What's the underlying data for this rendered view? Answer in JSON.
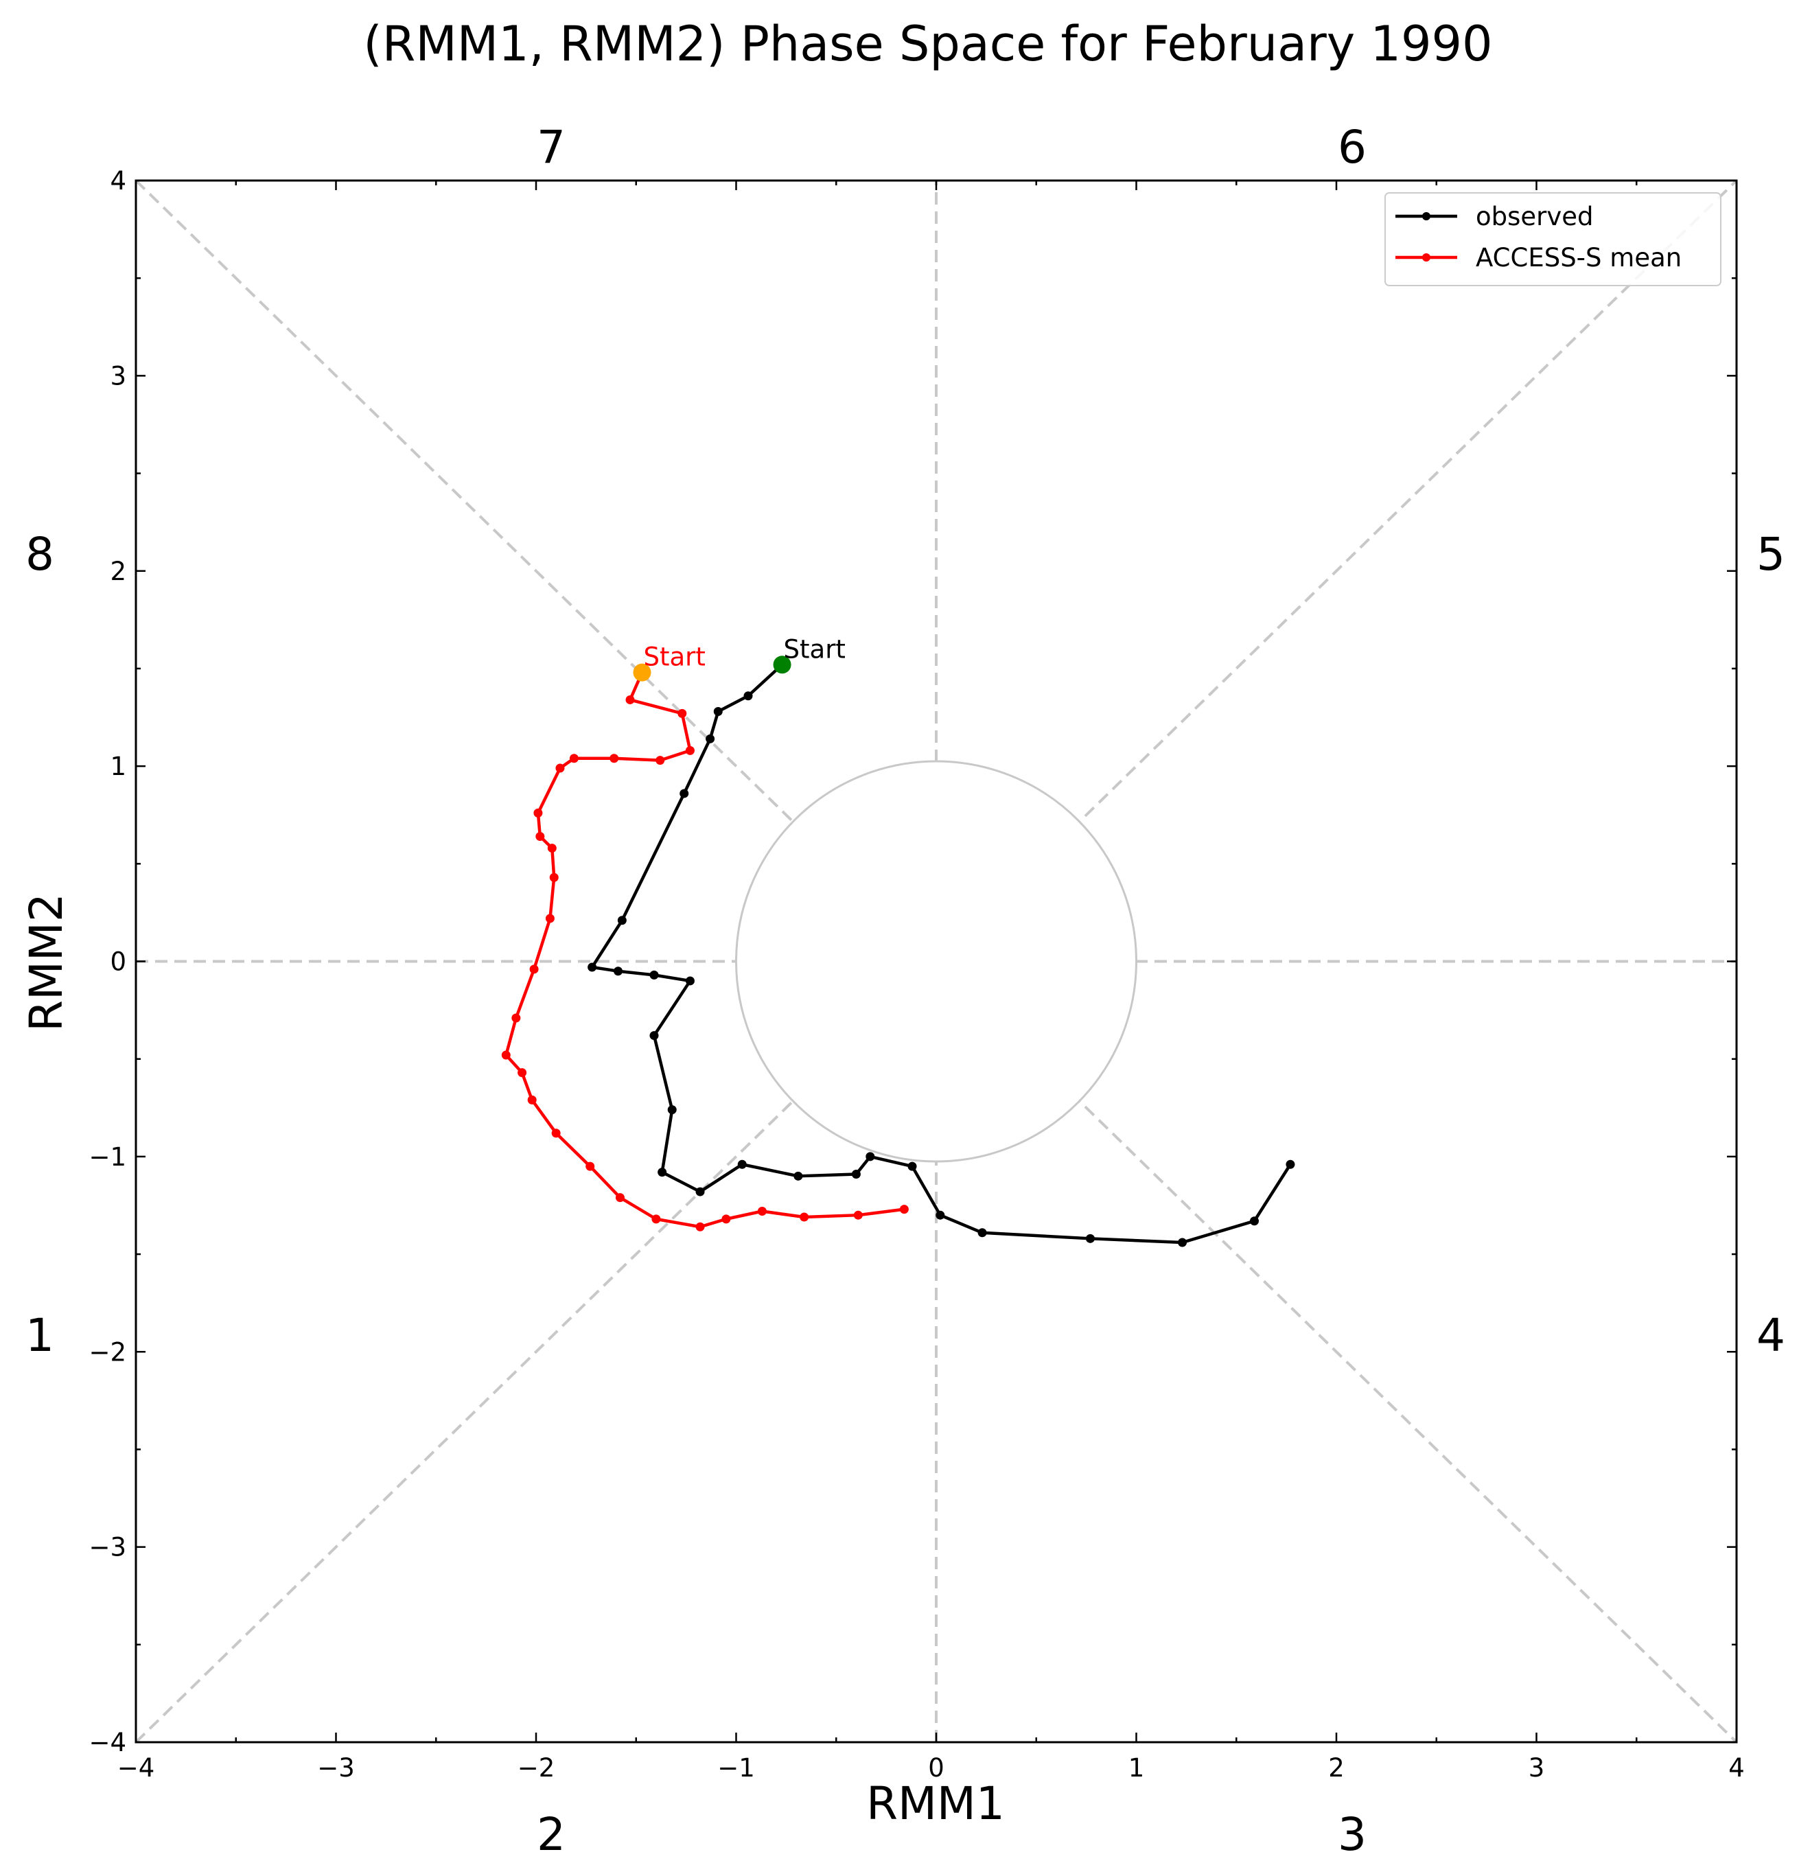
{
  "chart_data": {
    "type": "line",
    "title": "(RMM1, RMM2) Phase Space for February 1990",
    "xlabel": "RMM1",
    "ylabel": "RMM2",
    "xlim": [
      -4,
      4
    ],
    "ylim": [
      -4,
      4
    ],
    "xticks": [
      -4,
      -3,
      -2,
      -1,
      0,
      1,
      2,
      3,
      4
    ],
    "yticks": [
      -4,
      -3,
      -2,
      -1,
      0,
      1,
      2,
      3,
      4
    ],
    "xtick_labels": [
      "−4",
      "−3",
      "−2",
      "−1",
      "0",
      "1",
      "2",
      "3",
      "4"
    ],
    "ytick_labels": [
      "−4",
      "−3",
      "−2",
      "−1",
      "0",
      "1",
      "2",
      "3",
      "4"
    ],
    "phase_labels": {
      "top_left": "7",
      "top_right": "6",
      "right_upper": "5",
      "right_lower": "4",
      "bottom_right": "3",
      "bottom_left": "2",
      "left_lower": "1",
      "left_upper": "8"
    },
    "grid": false,
    "reference_lines": [
      "dashed axes",
      "dashed diagonals",
      "unit circle"
    ],
    "legend_position": "top-right",
    "start_label": "Start",
    "series": [
      {
        "name": "observed",
        "color": "#000000",
        "start_marker_color": "#008000",
        "x": [
          -0.77,
          -0.94,
          -1.09,
          -1.13,
          -1.26,
          -1.57,
          -1.72,
          -1.59,
          -1.41,
          -1.23,
          -1.41,
          -1.32,
          -1.37,
          -1.18,
          -0.97,
          -0.69,
          -0.4,
          -0.33,
          -0.12,
          0.02,
          0.23,
          0.77,
          1.23,
          1.59,
          1.77
        ],
        "y": [
          1.52,
          1.36,
          1.28,
          1.14,
          0.86,
          0.21,
          -0.03,
          -0.05,
          -0.07,
          -0.1,
          -0.38,
          -0.76,
          -1.08,
          -1.18,
          -1.04,
          -1.1,
          -1.09,
          -1.0,
          -1.05,
          -1.3,
          -1.39,
          -1.42,
          -1.44,
          -1.33,
          -1.04
        ]
      },
      {
        "name": "ACCESS-S mean",
        "color": "#ff0000",
        "start_marker_color": "#ffa500",
        "x": [
          -1.47,
          -1.53,
          -1.27,
          -1.23,
          -1.38,
          -1.61,
          -1.81,
          -1.88,
          -1.99,
          -1.98,
          -1.92,
          -1.91,
          -1.93,
          -2.01,
          -2.1,
          -2.15,
          -2.07,
          -2.02,
          -1.9,
          -1.73,
          -1.58,
          -1.4,
          -1.18,
          -1.05,
          -0.87,
          -0.66,
          -0.39,
          -0.16
        ],
        "y": [
          1.48,
          1.34,
          1.27,
          1.08,
          1.03,
          1.04,
          1.04,
          0.99,
          0.76,
          0.64,
          0.58,
          0.43,
          0.22,
          -0.04,
          -0.29,
          -0.48,
          -0.57,
          -0.71,
          -0.88,
          -1.05,
          -1.21,
          -1.32,
          -1.36,
          -1.32,
          -1.28,
          -1.31,
          -1.3,
          -1.27
        ]
      }
    ]
  }
}
